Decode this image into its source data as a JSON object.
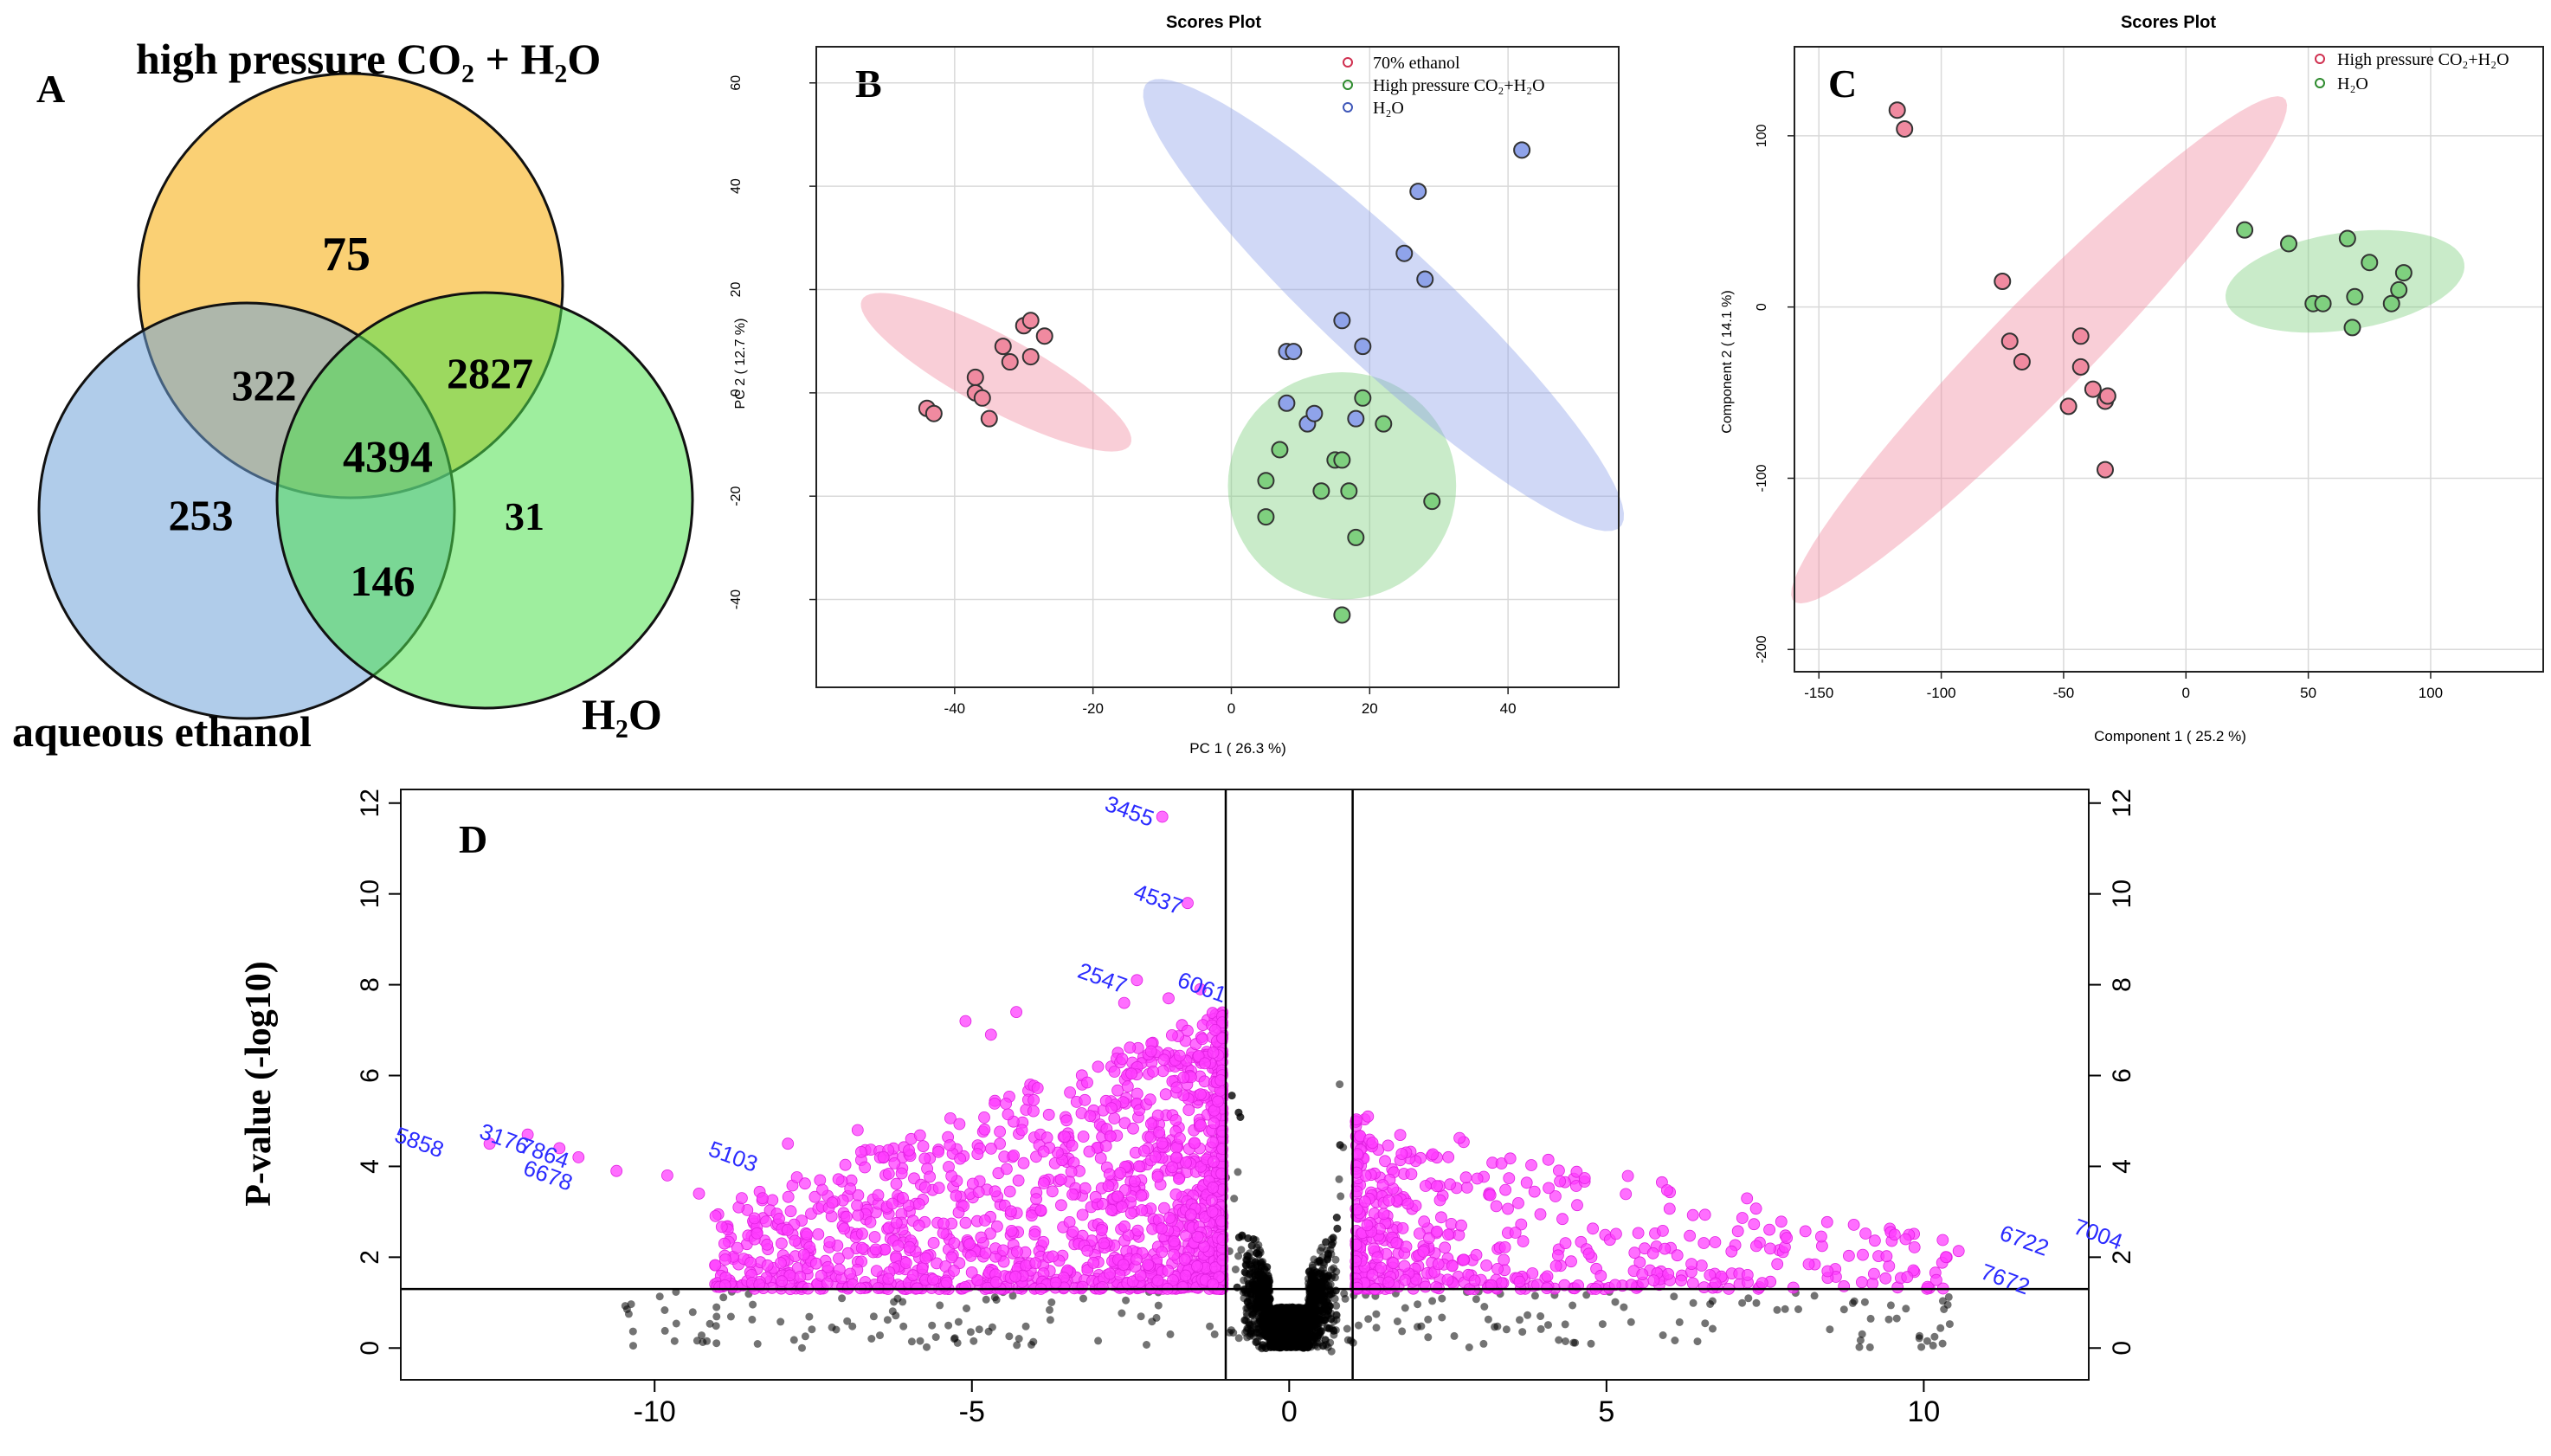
{
  "figure": {
    "panels": [
      "A",
      "B",
      "C",
      "D"
    ]
  },
  "chart_data": [
    {
      "panel": "A",
      "type": "venn",
      "sets": [
        "high pressure CO₂ + H₂O",
        "aqueous ethanol",
        "H₂O"
      ],
      "colors": [
        "#f9c85c",
        "#6fa2d8",
        "#4fe04f"
      ],
      "regions": {
        "co2_only": "75",
        "ethanol_only": "253",
        "water_only": "31",
        "co2_ethanol": "322",
        "co2_water": "2827",
        "ethanol_water": "146",
        "all": "4394"
      }
    },
    {
      "panel": "B",
      "type": "scatter",
      "title": "Scores Plot",
      "xlabel": "PC 1 ( 26.3 %)",
      "ylabel": "PC 2 ( 12.7 %)",
      "xlim": [
        -60,
        56
      ],
      "ylim": [
        -57,
        67
      ],
      "xticks": [
        -40,
        -20,
        0,
        20,
        40
      ],
      "yticks": [
        -40,
        -20,
        0,
        20,
        40,
        60
      ],
      "legend": [
        "70% ethanol",
        "High pressure CO₂+H₂O",
        "H₂O"
      ],
      "series": [
        {
          "name": "70% ethanol",
          "color": "#f08aa0",
          "edge": "#d03050",
          "points": [
            [
              -44,
              -3
            ],
            [
              -43,
              -4
            ],
            [
              -37,
              3
            ],
            [
              -37,
              0
            ],
            [
              -36,
              -1
            ],
            [
              -35,
              -5
            ],
            [
              -33,
              9
            ],
            [
              -32,
              6
            ],
            [
              -30,
              13
            ],
            [
              -29,
              7
            ],
            [
              -29,
              14
            ],
            [
              -27,
              11
            ]
          ]
        },
        {
          "name": "High pressure CO₂+H₂O",
          "color": "#7fd07f",
          "edge": "#2e8b2e",
          "points": [
            [
              5,
              -17
            ],
            [
              5,
              -24
            ],
            [
              7,
              -11
            ],
            [
              13,
              -19
            ],
            [
              15,
              -13
            ],
            [
              16,
              -13
            ],
            [
              17,
              -19
            ],
            [
              16,
              -43
            ],
            [
              18,
              -28
            ],
            [
              19,
              -1
            ],
            [
              22,
              -6
            ],
            [
              29,
              -21
            ]
          ]
        },
        {
          "name": "H₂O",
          "color": "#8fa3ea",
          "edge": "#3e56b8",
          "points": [
            [
              8,
              -2
            ],
            [
              8,
              8
            ],
            [
              9,
              8
            ],
            [
              11,
              -6
            ],
            [
              12,
              -4
            ],
            [
              16,
              14
            ],
            [
              18,
              -5
            ],
            [
              19,
              9
            ],
            [
              25,
              27
            ],
            [
              27,
              39
            ],
            [
              28,
              22
            ],
            [
              42,
              47
            ]
          ]
        }
      ],
      "ellipses": [
        {
          "series": "70% ethanol",
          "cx": -34,
          "cy": 4,
          "rx": 24,
          "ry": 6.5,
          "angle_deg": -37
        },
        {
          "series": "High pressure CO₂+H₂O",
          "cx": 16,
          "cy": -18,
          "rx": 16.5,
          "ry": 22,
          "angle_deg": 0
        },
        {
          "series": "H₂O",
          "cx": 22,
          "cy": 17,
          "rx": 55,
          "ry": 10,
          "angle_deg": -52
        }
      ]
    },
    {
      "panel": "C",
      "type": "scatter",
      "title": "Scores Plot",
      "xlabel": "Component 1 ( 25.2 %)",
      "ylabel": "Component 2 ( 14.1 %)",
      "xlim": [
        -160,
        146
      ],
      "ylim": [
        -213,
        152
      ],
      "xticks": [
        -150,
        -100,
        -50,
        0,
        50,
        100
      ],
      "yticks": [
        -200,
        -100,
        0,
        100
      ],
      "legend": [
        "High pressure CO₂+H₂O",
        "H₂O"
      ],
      "series": [
        {
          "name": "High pressure CO₂+H₂O",
          "color": "#f08aa0",
          "edge": "#d03050",
          "points": [
            [
              -118,
              115
            ],
            [
              -115,
              104
            ],
            [
              -75,
              15
            ],
            [
              -72,
              -20
            ],
            [
              -67,
              -32
            ],
            [
              -48,
              -58
            ],
            [
              -43,
              -35
            ],
            [
              -43,
              -17
            ],
            [
              -38,
              -48
            ],
            [
              -33,
              -55
            ],
            [
              -32,
              -52
            ],
            [
              -33,
              -95
            ]
          ]
        },
        {
          "name": "H₂O",
          "color": "#7fd07f",
          "edge": "#2e8b2e",
          "points": [
            [
              24,
              45
            ],
            [
              42,
              37
            ],
            [
              52,
              2
            ],
            [
              56,
              2
            ],
            [
              66,
              40
            ],
            [
              68,
              -12
            ],
            [
              69,
              6
            ],
            [
              75,
              26
            ],
            [
              84,
              2
            ],
            [
              87,
              10
            ],
            [
              89,
              20
            ]
          ]
        }
      ],
      "ellipses": [
        {
          "series": "High pressure CO₂+H₂O",
          "cx": -60,
          "cy": -25,
          "rx": 23,
          "ry": 178,
          "angle_deg": -34
        },
        {
          "series": "H₂O",
          "cx": 65,
          "cy": 15,
          "rx": 50,
          "ry": 28,
          "angle_deg": 15
        }
      ]
    },
    {
      "panel": "D",
      "type": "scatter",
      "title": "",
      "xlabel": "",
      "ylabel": "P-value (-log10)",
      "xlim": [
        -14,
        12.6
      ],
      "ylim": [
        -0.7,
        12.3
      ],
      "xticks": [
        -10,
        -5,
        0,
        5,
        10
      ],
      "yticks": [
        0,
        2,
        4,
        6,
        8,
        10,
        12
      ],
      "thresholds": {
        "fold_change_log2": [
          -1,
          1
        ],
        "pvalue_log10": 1.3
      },
      "significant_color": "#ff3dff",
      "nonsignificant_color": "#000000",
      "labeled_points": [
        {
          "id": "3455",
          "x": -2.0,
          "y": 11.7
        },
        {
          "id": "4537",
          "x": -1.6,
          "y": 9.8
        },
        {
          "id": "2547",
          "x": -2.4,
          "y": 8.1
        },
        {
          "id": "6061",
          "x": -1.4,
          "y": 7.9
        },
        {
          "id": "5858",
          "x": -13.0,
          "y": 4.6
        },
        {
          "id": "3176",
          "x": -11.8,
          "y": 4.6
        },
        {
          "id": "7864",
          "x": -11.3,
          "y": 4.4
        },
        {
          "id": "6678",
          "x": -11.0,
          "y": 4.1
        },
        {
          "id": "5103",
          "x": -9.2,
          "y": 4.4
        },
        {
          "id": "6722",
          "x": 10.9,
          "y": 2.4
        },
        {
          "id": "7004",
          "x": 11.3,
          "y": 2.5
        },
        {
          "id": "7672",
          "x": 10.6,
          "y": 1.7
        }
      ]
    }
  ]
}
